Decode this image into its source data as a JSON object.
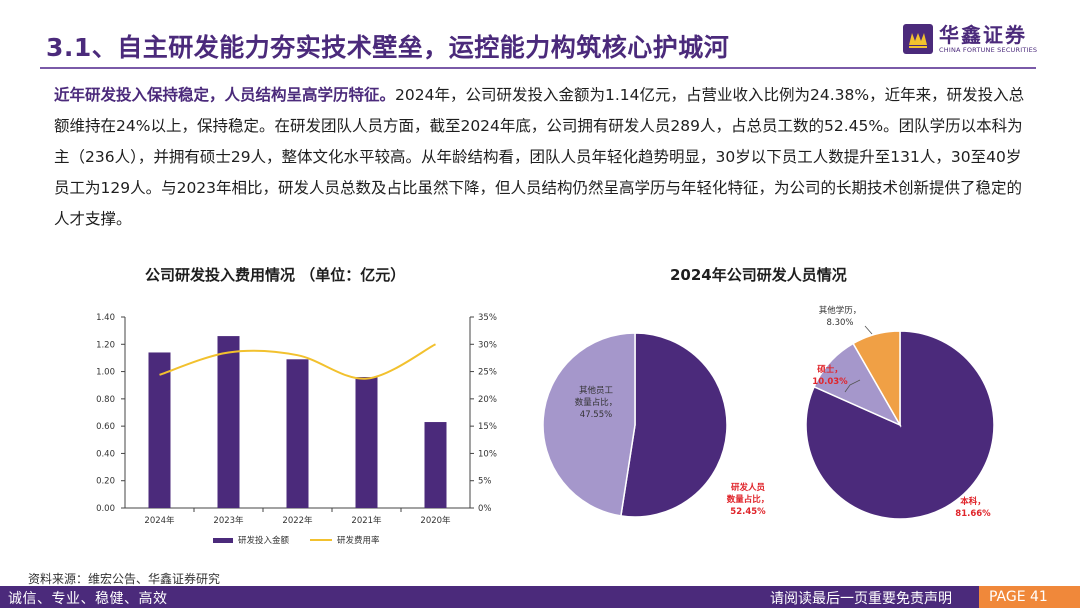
{
  "header": {
    "title": "3.1、自主研发能力夯实技术壁垒，运控能力构筑核心护城河",
    "logo_cn": "华鑫证券",
    "logo_en": "CHINA FORTUNE SECURITIES"
  },
  "paragraph": {
    "highlight": "近年研发投入保持稳定，人员结构呈高学历特征。",
    "text": "2024年，公司研发投入金额为1.14亿元，占营业收入比例为24.38%，近年来，研发投入总额维持在24%以上，保持稳定。在研发团队人员方面，截至2024年底，公司拥有研发人员289人，占总员工数的52.45%。团队学历以本科为主（236人），并拥有硕士29人，整体文化水平较高。从年龄结构看，团队人员年轻化趋势明显，30岁以下员工人数提升至131人，30至40岁员工为129人。与2023年相比，研发人员总数及占比虽然下降，但人员结构仍然呈高学历与年轻化特征，为公司的长期技术创新提供了稳定的人才支撑。"
  },
  "chart_data": [
    {
      "type": "bar",
      "title": "公司研发投入费用情况 （单位：亿元）",
      "categories": [
        "2024年",
        "2023年",
        "2022年",
        "2021年",
        "2020年"
      ],
      "series": [
        {
          "name": "研发投入金额",
          "type": "bar",
          "axis": "left",
          "values": [
            1.14,
            1.26,
            1.09,
            0.96,
            0.63
          ]
        },
        {
          "name": "研发费用率",
          "type": "line",
          "axis": "right",
          "values": [
            24.4,
            28.5,
            28.0,
            23.7,
            30.0
          ]
        }
      ],
      "y_left": {
        "ylim": [
          0,
          1.4
        ],
        "ticks": [
          "0.00",
          "0.20",
          "0.40",
          "0.60",
          "0.80",
          "1.00",
          "1.20",
          "1.40"
        ]
      },
      "y_right": {
        "ylim": [
          0,
          35
        ],
        "ticks": [
          "0%",
          "5%",
          "10%",
          "15%",
          "20%",
          "25%",
          "30%",
          "35%"
        ]
      },
      "colors": {
        "bar": "#4b2a7b",
        "line": "#f2c12e"
      },
      "legend": "bottom"
    },
    {
      "type": "pie",
      "title": "2024年公司研发人员情况",
      "pies": [
        {
          "name": "staff-ratio",
          "slices": [
            {
              "label_lines": [
                "研发人员",
                "数量占比，",
                "52.45%"
              ],
              "value": 52.45,
              "color": "#4b2a7b",
              "label_color": "#e0252b"
            },
            {
              "label_lines": [
                "其他员工",
                "数量占比，",
                "47.55%"
              ],
              "value": 47.55,
              "color": "#a597cb",
              "label_color": "#333333"
            }
          ]
        },
        {
          "name": "education",
          "slices": [
            {
              "label_lines": [
                "本科，",
                "81.66%"
              ],
              "value": 81.66,
              "color": "#4b2a7b",
              "label_color": "#e0252b"
            },
            {
              "label_lines": [
                "硕士，",
                "10.03%"
              ],
              "value": 10.03,
              "color": "#a597cb",
              "label_color": "#e0252b"
            },
            {
              "label_lines": [
                "其他学历，",
                "8.30%"
              ],
              "value": 8.3,
              "color": "#f0a045",
              "label_color": "#333333"
            }
          ]
        }
      ]
    }
  ],
  "source": "资料来源：维宏公告、华鑫证券研究",
  "footer": {
    "left": "诚信、专业、稳健、高效",
    "right": "请阅读最后一页重要免责声明",
    "page": "PAGE 41"
  }
}
